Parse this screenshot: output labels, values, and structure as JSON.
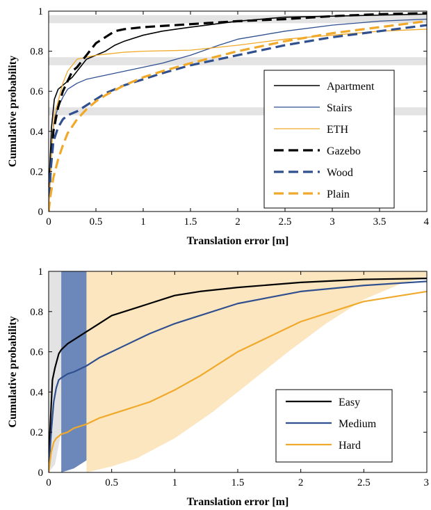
{
  "colors": {
    "black": "#000000",
    "blue": "#2f4f8f",
    "orange": "#f0a92a",
    "band_gray": "#e3e3e3",
    "band_blue": "#6c88bb",
    "band_orange": "#fce6bf"
  },
  "chart_data": [
    {
      "type": "line",
      "xlabel": "Translation error [m]",
      "ylabel": "Cumulative probability",
      "xlim": [
        0,
        4
      ],
      "ylim": [
        0,
        1
      ],
      "x_ticks": [
        "0",
        "0.5",
        "1",
        "1.5",
        "2",
        "2.5",
        "3",
        "3.5",
        "4"
      ],
      "y_ticks": [
        "0",
        "0.2",
        "0.4",
        "0.6",
        "0.8",
        "1"
      ],
      "grid": false,
      "legend_position": "bottom-right",
      "horizontal_bands": [
        {
          "y": [
            0.94,
            0.98
          ]
        },
        {
          "y": [
            0.73,
            0.77
          ]
        },
        {
          "y": [
            0.48,
            0.52
          ]
        }
      ],
      "series": [
        {
          "name": "Apartment",
          "color": "black",
          "dash": false,
          "width": 1.6,
          "x": [
            0,
            0.01,
            0.03,
            0.06,
            0.1,
            0.15,
            0.2,
            0.25,
            0.3,
            0.35,
            0.4,
            0.5,
            0.6,
            0.7,
            0.8,
            1.0,
            1.2,
            1.5,
            2.0,
            2.5,
            3.0,
            3.5,
            4.0
          ],
          "y": [
            0,
            0.2,
            0.42,
            0.56,
            0.61,
            0.63,
            0.65,
            0.67,
            0.7,
            0.73,
            0.76,
            0.78,
            0.8,
            0.83,
            0.85,
            0.88,
            0.9,
            0.92,
            0.95,
            0.97,
            0.975,
            0.98,
            0.985
          ]
        },
        {
          "name": "Stairs",
          "color": "blue",
          "dash": false,
          "width": 1.3,
          "x": [
            0,
            0.02,
            0.04,
            0.06,
            0.1,
            0.15,
            0.2,
            0.3,
            0.4,
            0.5,
            0.6,
            0.8,
            1.0,
            1.2,
            1.5,
            1.8,
            2.0,
            2.5,
            3.0,
            3.5,
            4.0
          ],
          "y": [
            0,
            0.18,
            0.38,
            0.46,
            0.52,
            0.57,
            0.61,
            0.64,
            0.66,
            0.67,
            0.68,
            0.7,
            0.72,
            0.74,
            0.78,
            0.83,
            0.86,
            0.9,
            0.93,
            0.95,
            0.96
          ]
        },
        {
          "name": "ETH",
          "color": "orange",
          "dash": false,
          "width": 1.3,
          "x": [
            0,
            0.02,
            0.04,
            0.06,
            0.1,
            0.15,
            0.2,
            0.3,
            0.4,
            0.5,
            0.6,
            0.8,
            1.0,
            1.5,
            2.0,
            2.5,
            3.0,
            3.5,
            4.0
          ],
          "y": [
            0,
            0.2,
            0.38,
            0.48,
            0.55,
            0.64,
            0.7,
            0.76,
            0.77,
            0.78,
            0.785,
            0.795,
            0.8,
            0.805,
            0.83,
            0.86,
            0.88,
            0.9,
            0.91
          ]
        },
        {
          "name": "Gazebo",
          "color": "black",
          "dash": true,
          "width": 3.2,
          "x": [
            0,
            0.02,
            0.05,
            0.1,
            0.15,
            0.2,
            0.25,
            0.3,
            0.35,
            0.4,
            0.5,
            0.6,
            0.7,
            0.8,
            1.0,
            1.5,
            2.0,
            2.5,
            3.0,
            3.5,
            4.0
          ],
          "y": [
            0,
            0.2,
            0.4,
            0.52,
            0.6,
            0.65,
            0.7,
            0.72,
            0.75,
            0.78,
            0.84,
            0.87,
            0.9,
            0.91,
            0.92,
            0.935,
            0.95,
            0.96,
            0.975,
            0.985,
            0.99
          ]
        },
        {
          "name": "Wood",
          "color": "blue",
          "dash": true,
          "width": 3.2,
          "x": [
            0,
            0.02,
            0.05,
            0.1,
            0.15,
            0.2,
            0.3,
            0.4,
            0.5,
            0.6,
            0.8,
            1.0,
            1.2,
            1.5,
            2.0,
            2.5,
            3.0,
            3.5,
            4.0
          ],
          "y": [
            0,
            0.2,
            0.35,
            0.42,
            0.46,
            0.48,
            0.5,
            0.53,
            0.56,
            0.59,
            0.63,
            0.66,
            0.69,
            0.73,
            0.78,
            0.83,
            0.87,
            0.9,
            0.93
          ]
        },
        {
          "name": "Plain",
          "color": "orange",
          "dash": true,
          "width": 3.2,
          "x": [
            0,
            0.02,
            0.05,
            0.1,
            0.15,
            0.2,
            0.3,
            0.4,
            0.5,
            0.6,
            0.8,
            1.0,
            1.2,
            1.5,
            2.0,
            2.5,
            3.0,
            3.5,
            4.0
          ],
          "y": [
            0,
            0.08,
            0.17,
            0.26,
            0.33,
            0.39,
            0.46,
            0.51,
            0.55,
            0.58,
            0.63,
            0.67,
            0.7,
            0.74,
            0.8,
            0.85,
            0.89,
            0.92,
            0.95
          ]
        }
      ]
    },
    {
      "type": "line",
      "xlabel": "Translation error [m]",
      "ylabel": "Cumulative probability",
      "xlim": [
        0,
        3
      ],
      "ylim": [
        0,
        1
      ],
      "x_ticks": [
        "0",
        "0.5",
        "1",
        "1.5",
        "2",
        "2.5",
        "3"
      ],
      "y_ticks": [
        "0",
        "0.2",
        "0.4",
        "0.6",
        "0.8",
        "1"
      ],
      "grid": false,
      "legend_position": "bottom-right",
      "shaded_bands": [
        {
          "color": "band_gray",
          "lower": {
            "x": [
              0,
              0.05,
              0.1,
              0.15,
              0.2,
              0.25,
              0.3,
              0.35
            ],
            "y": [
              0,
              0.04,
              0.2,
              0.45,
              0.7,
              0.88,
              0.97,
              1.0
            ]
          },
          "upper_y": 1
        },
        {
          "color": "band_blue",
          "lower": {
            "x": [
              0.1,
              0.2,
              0.3,
              0.4,
              0.5,
              0.6,
              0.7,
              0.8,
              0.9,
              1.0,
              1.1,
              1.2,
              1.3,
              1.4,
              1.5
            ],
            "y": [
              0,
              0.02,
              0.06,
              0.13,
              0.23,
              0.35,
              0.48,
              0.6,
              0.7,
              0.79,
              0.86,
              0.91,
              0.95,
              0.98,
              1.0
            ]
          },
          "upper_y": 1
        },
        {
          "color": "band_orange",
          "lower": {
            "x": [
              0.3,
              0.5,
              0.7,
              1.0,
              1.3,
              1.6,
              1.9,
              2.2,
              2.5,
              2.8,
              3.0
            ],
            "y": [
              0,
              0.03,
              0.07,
              0.17,
              0.3,
              0.45,
              0.6,
              0.74,
              0.86,
              0.94,
              0.97
            ]
          },
          "upper_y": 1
        }
      ],
      "series": [
        {
          "name": "Easy",
          "color": "black",
          "dash": false,
          "width": 2.2,
          "x": [
            0,
            0.01,
            0.03,
            0.05,
            0.08,
            0.1,
            0.15,
            0.2,
            0.3,
            0.4,
            0.5,
            0.6,
            0.7,
            0.8,
            0.9,
            1.0,
            1.2,
            1.5,
            2.0,
            2.5,
            3.0
          ],
          "y": [
            0,
            0.2,
            0.46,
            0.52,
            0.59,
            0.61,
            0.64,
            0.66,
            0.7,
            0.74,
            0.78,
            0.8,
            0.82,
            0.84,
            0.86,
            0.88,
            0.9,
            0.92,
            0.945,
            0.96,
            0.965
          ]
        },
        {
          "name": "Medium",
          "color": "blue",
          "dash": false,
          "width": 2.2,
          "x": [
            0,
            0.02,
            0.04,
            0.06,
            0.08,
            0.1,
            0.15,
            0.2,
            0.3,
            0.4,
            0.5,
            0.6,
            0.7,
            0.8,
            1.0,
            1.2,
            1.5,
            2.0,
            2.5,
            3.0
          ],
          "y": [
            0,
            0.2,
            0.35,
            0.42,
            0.46,
            0.47,
            0.49,
            0.5,
            0.53,
            0.57,
            0.6,
            0.63,
            0.66,
            0.69,
            0.74,
            0.78,
            0.84,
            0.9,
            0.93,
            0.95
          ]
        },
        {
          "name": "Hard",
          "color": "orange",
          "dash": false,
          "width": 2.2,
          "x": [
            0,
            0.02,
            0.04,
            0.06,
            0.08,
            0.1,
            0.15,
            0.2,
            0.3,
            0.4,
            0.5,
            0.6,
            0.7,
            0.8,
            1.0,
            1.2,
            1.5,
            2.0,
            2.5,
            3.0
          ],
          "y": [
            0,
            0.1,
            0.15,
            0.17,
            0.18,
            0.19,
            0.2,
            0.22,
            0.24,
            0.27,
            0.29,
            0.31,
            0.33,
            0.35,
            0.41,
            0.48,
            0.6,
            0.75,
            0.85,
            0.9
          ]
        }
      ]
    }
  ]
}
